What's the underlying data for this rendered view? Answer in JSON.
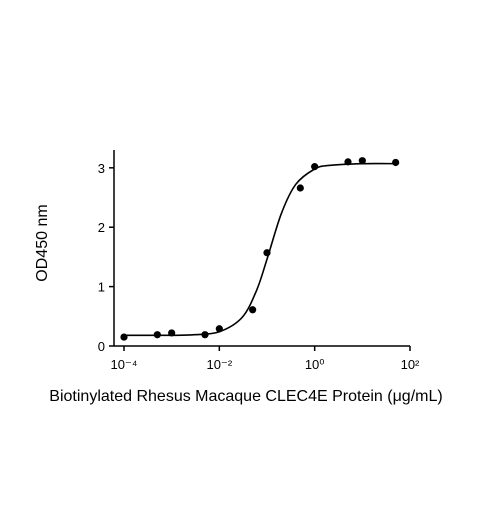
{
  "chart_data": {
    "type": "scatter",
    "x_label": "Biotinylated Rhesus Macaque CLEC4E Protein (μg/mL)",
    "y_label": "OD450 nm",
    "x_scale": "log",
    "x": [
      0.0001,
      0.0005,
      0.001,
      0.005,
      0.01,
      0.05,
      0.1,
      0.5,
      1,
      5,
      10,
      50
    ],
    "values": [
      0.15,
      0.19,
      0.22,
      0.19,
      0.29,
      0.61,
      1.57,
      2.66,
      3.02,
      3.1,
      3.12,
      3.09
    ],
    "color": "#000000",
    "fit": {
      "x": [
        0.0001,
        0.001,
        0.003,
        0.01,
        0.03,
        0.06,
        0.1,
        0.2,
        0.4,
        1,
        2,
        10,
        50
      ],
      "y": [
        0.18,
        0.18,
        0.19,
        0.24,
        0.48,
        0.93,
        1.46,
        2.23,
        2.72,
        2.98,
        3.04,
        3.07,
        3.07
      ],
      "color": "#000000"
    },
    "xlim": [
      0.0001,
      100
    ],
    "ylim": [
      0,
      3.3
    ],
    "xticks": [
      {
        "value": 0.0001,
        "label": "10⁻⁴"
      },
      {
        "value": 0.01,
        "label": "10⁻²"
      },
      {
        "value": 1,
        "label": "10⁰"
      },
      {
        "value": 100,
        "label": "10²"
      }
    ],
    "yticks": [
      0,
      1,
      2,
      3
    ],
    "grid": false
  }
}
